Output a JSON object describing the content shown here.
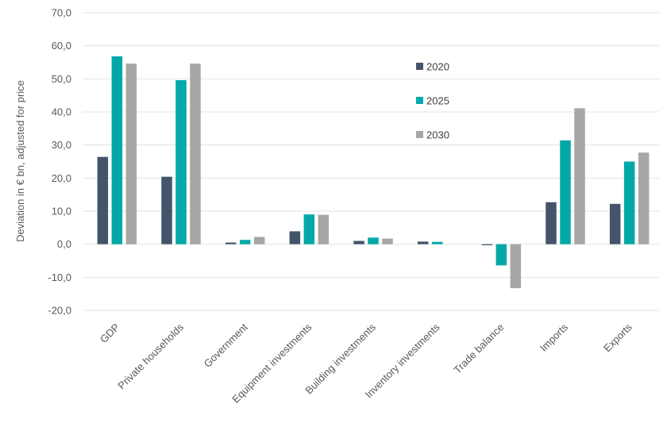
{
  "chart_data": {
    "type": "bar",
    "ylabel": "Deviation in € bn, adjusted for price",
    "ylim": [
      -20,
      70
    ],
    "yticks": [
      "70,0",
      "60,0",
      "50,0",
      "40,0",
      "30,0",
      "20,0",
      "10,0",
      "0,0",
      "-10,0",
      "-20,0"
    ],
    "ytick_values": [
      70,
      60,
      50,
      40,
      30,
      20,
      10,
      0,
      -10,
      -20
    ],
    "grid": true,
    "legend_position": "top-right",
    "categories": [
      "GDP",
      "Private households",
      "Government",
      "Equipment investments",
      "Building investments",
      "Inventory investments",
      "Trade balance",
      "Imports",
      "Exports"
    ],
    "series": [
      {
        "name": "2020",
        "color": "#44546a",
        "values": [
          26.4,
          20.4,
          0.5,
          3.9,
          1.0,
          0.8,
          -0.3,
          12.7,
          12.2
        ]
      },
      {
        "name": "2025",
        "color": "#00a9a8",
        "values": [
          56.8,
          49.6,
          1.3,
          9.0,
          2.0,
          0.7,
          -6.4,
          31.4,
          25.0
        ]
      },
      {
        "name": "2030",
        "color": "#a6a6a6",
        "values": [
          54.6,
          54.6,
          2.2,
          8.9,
          1.7,
          0.0,
          -13.3,
          41.1,
          27.7
        ]
      }
    ]
  }
}
